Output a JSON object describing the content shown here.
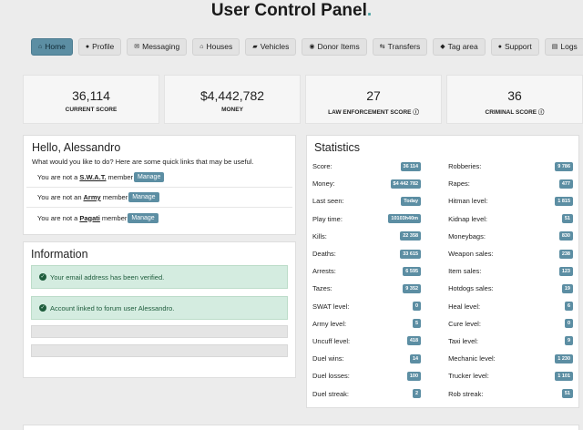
{
  "title": "User Control Panel",
  "title_dot": ".",
  "nav": [
    {
      "label": "Home",
      "icon": "⌂",
      "icon_name": "home-icon",
      "active": true
    },
    {
      "label": "Profile",
      "icon": "●",
      "icon_name": "user-icon",
      "active": false
    },
    {
      "label": "Messaging",
      "icon": "✉",
      "icon_name": "envelope-icon",
      "active": false
    },
    {
      "label": "Houses",
      "icon": "⌂",
      "icon_name": "house-icon",
      "active": false
    },
    {
      "label": "Vehicles",
      "icon": "▰",
      "icon_name": "car-icon",
      "active": false
    },
    {
      "label": "Donor Items",
      "icon": "◉",
      "icon_name": "glasses-icon",
      "active": false
    },
    {
      "label": "Transfers",
      "icon": "⇆",
      "icon_name": "transfer-icon",
      "active": false
    },
    {
      "label": "Tag area",
      "icon": "◆",
      "icon_name": "tag-icon",
      "active": false
    },
    {
      "label": "Support",
      "icon": "●",
      "icon_name": "chat-icon",
      "active": false
    },
    {
      "label": "Logs",
      "icon": "▤",
      "icon_name": "file-icon",
      "active": false
    }
  ],
  "cards": [
    {
      "value": "36,114",
      "label": "CURRENT SCORE",
      "help": false
    },
    {
      "value": "$4,442,782",
      "label": "MONEY",
      "help": false
    },
    {
      "value": "27",
      "label": "LAW ENFORCEMENT SCORE",
      "help": true
    },
    {
      "value": "36",
      "label": "CRIMINAL SCORE",
      "help": true
    }
  ],
  "hello": {
    "heading": "Hello, Alessandro",
    "subtitle": "What would you like to do? Here are some quick links that may be useful.",
    "rows": [
      {
        "prefix": "You are not a",
        "group": "S.W.A.T.",
        "suffix": "member",
        "button": "Manage"
      },
      {
        "prefix": "You are not an",
        "group": "Army",
        "suffix": "member",
        "button": "Manage"
      },
      {
        "prefix": "You are not a",
        "group": "Pagati",
        "suffix": "member",
        "button": "Manage"
      }
    ]
  },
  "information": {
    "heading": "Information",
    "alerts": [
      "Your email address has been verified.",
      "Account linked to forum user Alessandro."
    ]
  },
  "statistics": {
    "heading": "Statistics",
    "left": [
      {
        "label": "Score:",
        "value": "36 114"
      },
      {
        "label": "Money:",
        "value": "$4 442 782"
      },
      {
        "label": "Last seen:",
        "value": "Today"
      },
      {
        "label": "Play time:",
        "value": "10103h40m"
      },
      {
        "label": "Kills:",
        "value": "22 358"
      },
      {
        "label": "Deaths:",
        "value": "33 615"
      },
      {
        "label": "Arrests:",
        "value": "6 595"
      },
      {
        "label": "Tazes:",
        "value": "9 352"
      },
      {
        "label": "SWAT level:",
        "value": "0"
      },
      {
        "label": "Army level:",
        "value": "5"
      },
      {
        "label": "Uncuff level:",
        "value": "418"
      },
      {
        "label": "Duel wins:",
        "value": "14"
      },
      {
        "label": "Duel losses:",
        "value": "100"
      },
      {
        "label": "Duel streak:",
        "value": "2"
      }
    ],
    "right": [
      {
        "label": "Robberies:",
        "value": "9 786"
      },
      {
        "label": "Rapes:",
        "value": "477"
      },
      {
        "label": "Hitman level:",
        "value": "1 815"
      },
      {
        "label": "Kidnap level:",
        "value": "51"
      },
      {
        "label": "Moneybags:",
        "value": "830"
      },
      {
        "label": "Weapon sales:",
        "value": "238"
      },
      {
        "label": "Item sales:",
        "value": "123"
      },
      {
        "label": "Hotdogs sales:",
        "value": "19"
      },
      {
        "label": "Heal level:",
        "value": "6"
      },
      {
        "label": "Cure level:",
        "value": "0"
      },
      {
        "label": "Taxi level:",
        "value": "9"
      },
      {
        "label": "Mechanic level:",
        "value": "1 230"
      },
      {
        "label": "Trucker level:",
        "value": "1 101"
      },
      {
        "label": "Rob streak:",
        "value": "51"
      }
    ]
  },
  "colors": {
    "accent": "#5c8ea3",
    "success_bg": "#d4ece0",
    "success_text": "#1e5c3c"
  }
}
